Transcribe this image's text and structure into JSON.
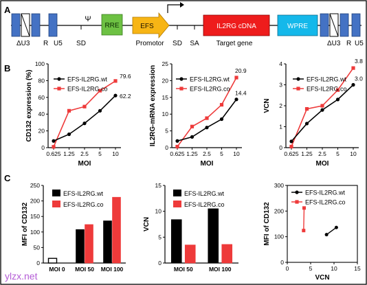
{
  "panels": {
    "a": "A",
    "b": "B",
    "c": "C"
  },
  "colors": {
    "wt": "#000000",
    "co": "#ee3a3a",
    "blue": "#4472c4",
    "green": "#6dc143",
    "yellow": "#f7b515",
    "red": "#ee1c1c",
    "cyan": "#14b8ea"
  },
  "construct": {
    "ltr_label_left": "ΔU3",
    "r_left": "R",
    "u5_left": "U5",
    "sd1": "SD",
    "psi": "Ψ",
    "rre": "RRE",
    "efs": "EFS",
    "promotor": "Promotor",
    "sd2": "SD",
    "sa": "SA",
    "cdna": "IL2RG cDNA",
    "target_gene": "Target gene",
    "wpre": "WPRE",
    "ltr_label_right": "ΔU3",
    "r_right": "R",
    "u5_right": "U5"
  },
  "legend": {
    "wt": "EFS-IL2RG.wt",
    "co": "EFS-IL2RG.co"
  },
  "watermark": "ylzx.net",
  "chart_data": [
    {
      "type": "line",
      "panel": "B",
      "xlabel": "MOI",
      "ylabel": "CD132 expression (%)",
      "x": [
        "0.625",
        "1.25",
        "2.5",
        "5",
        "10"
      ],
      "ylim": [
        0,
        100
      ],
      "yticks": [
        "0",
        "20",
        "40",
        "60",
        "80",
        "100"
      ],
      "series": [
        {
          "name": "EFS-IL2RG.wt",
          "values": [
            8,
            16,
            29,
            44,
            62.2
          ]
        },
        {
          "name": "EFS-IL2RG.co",
          "values": [
            1,
            44,
            49,
            68,
            79.6
          ]
        }
      ],
      "annotations": [
        "79.6",
        "62.2"
      ]
    },
    {
      "type": "line",
      "panel": "B",
      "xlabel": "MOI",
      "ylabel": "IL2RG-mRNA expression",
      "x": [
        "0.625",
        "1.25",
        "2.5",
        "5",
        "10"
      ],
      "ylim": [
        0,
        25
      ],
      "yticks": [
        "0",
        "5",
        "10",
        "15",
        "20",
        "25"
      ],
      "series": [
        {
          "name": "EFS-IL2RG.wt",
          "values": [
            2,
            3.2,
            6,
            8.5,
            14.4
          ]
        },
        {
          "name": "EFS-IL2RG.co",
          "values": [
            0.3,
            6.3,
            8.8,
            12.8,
            20.9
          ]
        }
      ],
      "annotations": [
        "20.9",
        "14.4"
      ]
    },
    {
      "type": "line",
      "panel": "B",
      "xlabel": "MOI",
      "ylabel": "VCN",
      "x": [
        "0.625",
        "1.25",
        "2.5",
        "5",
        "10"
      ],
      "ylim": [
        0,
        4
      ],
      "yticks": [
        "0",
        "1",
        "2",
        "3",
        "4"
      ],
      "series": [
        {
          "name": "EFS-IL2RG.wt",
          "values": [
            0.3,
            1.15,
            1.8,
            2.3,
            3.0
          ]
        },
        {
          "name": "EFS-IL2RG.co",
          "values": [
            0.05,
            1.85,
            2.0,
            2.75,
            3.8
          ]
        }
      ],
      "annotations": [
        "3.8",
        "3.0"
      ]
    },
    {
      "type": "bar",
      "panel": "C",
      "ylabel": "MFI of CD132",
      "categories": [
        "MOI 0",
        "MOI 50",
        "MOI 100"
      ],
      "ylim": [
        0,
        250
      ],
      "yticks": [
        "0",
        "50",
        "100",
        "150",
        "200",
        "250"
      ],
      "series": [
        {
          "name": "EFS-IL2RG.wt",
          "values": [
            15,
            108,
            136
          ]
        },
        {
          "name": "EFS-IL2RG.co",
          "values": [
            null,
            124,
            212
          ]
        }
      ]
    },
    {
      "type": "bar",
      "panel": "C",
      "ylabel": "VCN",
      "categories": [
        "MOI 50",
        "MOI 100"
      ],
      "ylim": [
        0,
        15
      ],
      "yticks": [
        "0",
        "5",
        "10",
        "15"
      ],
      "series": [
        {
          "name": "EFS-IL2RG.wt",
          "values": [
            8.4,
            10.5
          ]
        },
        {
          "name": "EFS-IL2RG.co",
          "values": [
            3.5,
            3.6
          ]
        }
      ]
    },
    {
      "type": "scatter",
      "panel": "C",
      "xlabel": "VCN",
      "ylabel": "MFI of CD132",
      "xlim": [
        0,
        15
      ],
      "xticks": [
        "0",
        "5",
        "10",
        "15"
      ],
      "ylim": [
        0,
        300
      ],
      "yticks": [
        "0",
        "100",
        "200",
        "300"
      ],
      "series": [
        {
          "name": "EFS-IL2RG.wt",
          "points": [
            [
              8.4,
              108
            ],
            [
              10.5,
              136
            ]
          ]
        },
        {
          "name": "EFS-IL2RG.co",
          "points": [
            [
              3.5,
              124
            ],
            [
              3.6,
              212
            ]
          ]
        }
      ]
    }
  ]
}
